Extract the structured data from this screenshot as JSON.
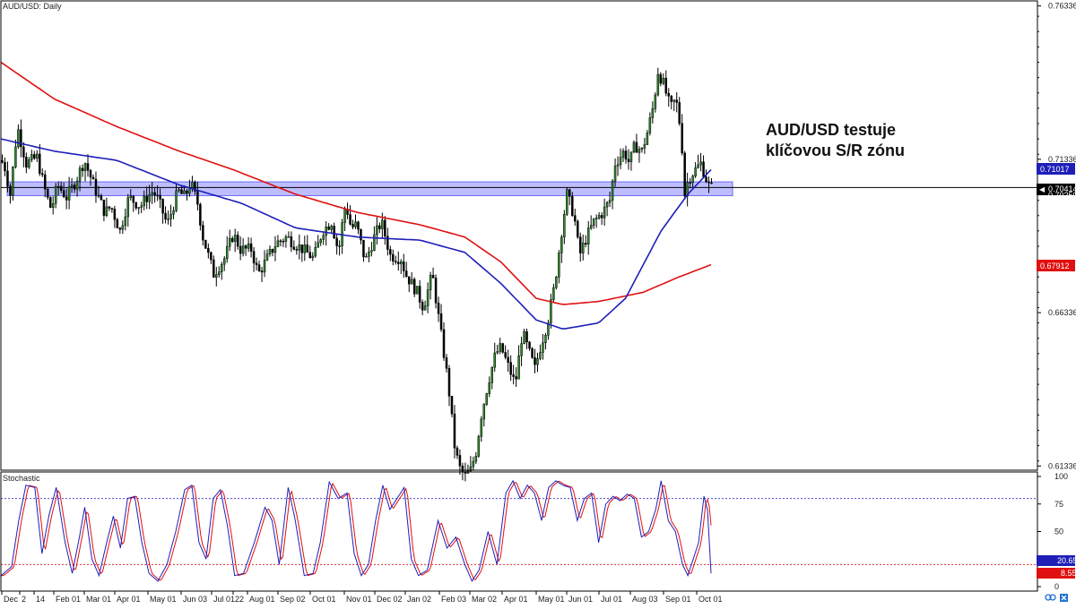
{
  "chart_data": [
    {
      "type": "candlestick",
      "title": "AUD/USD: Daily",
      "symbol": "AUD/USD",
      "timeframe": "Daily",
      "ylim": [
        0.612,
        0.765
      ],
      "y_ticks": [
        "0.76336",
        "0.71336",
        "0.66336",
        "0.61336"
      ],
      "y_tick_values": [
        0.76336,
        0.71336,
        0.66336,
        0.61336
      ],
      "x_ticks": [
        "Dec",
        "2",
        "14",
        "Feb 01",
        "Mar 01",
        "Apr 01",
        "May 01",
        "Jun 03",
        "Jul 01",
        "22",
        "Aug 01",
        "Sep 02",
        "Oct 01",
        "Nov 01",
        "Dec 02",
        "Jan 02",
        "Feb 03",
        "Mar 02",
        "Apr 01",
        "May 01",
        "Jun 01",
        "Jul 01",
        "Aug 03",
        "Sep 01",
        "Oct 01"
      ],
      "annotation": [
        "AUD/USD testuje",
        "klíčovou S/R zónu"
      ],
      "sr_zone": [
        0.7015,
        0.706
      ],
      "current_price": 0.70414,
      "current_price_label": "0.70414",
      "hidden_price_label": "0.70250",
      "ma_fast": {
        "color": "#1f1fb8",
        "last_value": 0.71017,
        "label": "0.71017"
      },
      "ma_slow": {
        "color": "#e01010",
        "last_value": 0.67912,
        "label": "0.67912"
      },
      "price_keypoints": [
        [
          0,
          0.713
        ],
        [
          5,
          0.712
        ],
        [
          12,
          0.702
        ],
        [
          20,
          0.724
        ],
        [
          30,
          0.712
        ],
        [
          42,
          0.714
        ],
        [
          52,
          0.702
        ],
        [
          58,
          0.697
        ],
        [
          65,
          0.705
        ],
        [
          75,
          0.701
        ],
        [
          85,
          0.706
        ],
        [
          95,
          0.713
        ],
        [
          108,
          0.703
        ],
        [
          118,
          0.696
        ],
        [
          125,
          0.698
        ],
        [
          135,
          0.69
        ],
        [
          145,
          0.701
        ],
        [
          158,
          0.698
        ],
        [
          165,
          0.701
        ],
        [
          172,
          0.703
        ],
        [
          178,
          0.7
        ],
        [
          188,
          0.692
        ],
        [
          200,
          0.703
        ],
        [
          208,
          0.701
        ],
        [
          214,
          0.706
        ],
        [
          222,
          0.699
        ],
        [
          228,
          0.688
        ],
        [
          240,
          0.676
        ],
        [
          252,
          0.681
        ],
        [
          262,
          0.689
        ],
        [
          270,
          0.684
        ],
        [
          282,
          0.684
        ],
        [
          290,
          0.676
        ],
        [
          300,
          0.681
        ],
        [
          310,
          0.686
        ],
        [
          322,
          0.688
        ],
        [
          330,
          0.686
        ],
        [
          340,
          0.684
        ],
        [
          352,
          0.681
        ],
        [
          362,
          0.69
        ],
        [
          372,
          0.693
        ],
        [
          380,
          0.683
        ],
        [
          384,
          0.692
        ],
        [
          388,
          0.699
        ],
        [
          394,
          0.691
        ],
        [
          400,
          0.692
        ],
        [
          410,
          0.68
        ],
        [
          420,
          0.688
        ],
        [
          428,
          0.693
        ],
        [
          438,
          0.682
        ],
        [
          450,
          0.681
        ],
        [
          455,
          0.676
        ],
        [
          468,
          0.67
        ],
        [
          475,
          0.665
        ],
        [
          485,
          0.676
        ],
        [
          493,
          0.66
        ],
        [
          503,
          0.64
        ],
        [
          510,
          0.62
        ],
        [
          515,
          0.613
        ],
        [
          522,
          0.61
        ],
        [
          528,
          0.612
        ],
        [
          534,
          0.618
        ],
        [
          540,
          0.63
        ],
        [
          548,
          0.641
        ],
        [
          556,
          0.65
        ],
        [
          562,
          0.652
        ],
        [
          570,
          0.646
        ],
        [
          578,
          0.64
        ],
        [
          586,
          0.657
        ],
        [
          594,
          0.65
        ],
        [
          600,
          0.645
        ],
        [
          606,
          0.652
        ],
        [
          614,
          0.66
        ],
        [
          622,
          0.672
        ],
        [
          630,
          0.69
        ],
        [
          636,
          0.702
        ],
        [
          644,
          0.695
        ],
        [
          650,
          0.682
        ],
        [
          658,
          0.688
        ],
        [
          666,
          0.693
        ],
        [
          676,
          0.696
        ],
        [
          684,
          0.7
        ],
        [
          690,
          0.712
        ],
        [
          700,
          0.716
        ],
        [
          706,
          0.712
        ],
        [
          712,
          0.718
        ],
        [
          720,
          0.716
        ],
        [
          726,
          0.722
        ],
        [
          733,
          0.731
        ],
        [
          738,
          0.742
        ],
        [
          744,
          0.738
        ],
        [
          752,
          0.73
        ],
        [
          758,
          0.733
        ],
        [
          764,
          0.722
        ],
        [
          768,
          0.702
        ],
        [
          772,
          0.707
        ],
        [
          780,
          0.71
        ],
        [
          786,
          0.712
        ],
        [
          792,
          0.707
        ],
        [
          796,
          0.704
        ]
      ],
      "ma_fast_keypoints": [
        [
          0,
          0.72
        ],
        [
          60,
          0.716
        ],
        [
          130,
          0.713
        ],
        [
          200,
          0.705
        ],
        [
          270,
          0.699
        ],
        [
          330,
          0.691
        ],
        [
          400,
          0.688
        ],
        [
          470,
          0.687
        ],
        [
          520,
          0.683
        ],
        [
          560,
          0.673
        ],
        [
          600,
          0.661
        ],
        [
          630,
          0.658
        ],
        [
          670,
          0.66
        ],
        [
          700,
          0.668
        ],
        [
          740,
          0.69
        ],
        [
          770,
          0.702
        ],
        [
          796,
          0.71
        ]
      ],
      "ma_slow_keypoints": [
        [
          0,
          0.745
        ],
        [
          60,
          0.733
        ],
        [
          130,
          0.724
        ],
        [
          200,
          0.716
        ],
        [
          260,
          0.71
        ],
        [
          330,
          0.702
        ],
        [
          400,
          0.696
        ],
        [
          470,
          0.692
        ],
        [
          520,
          0.688
        ],
        [
          560,
          0.68
        ],
        [
          600,
          0.668
        ],
        [
          630,
          0.666
        ],
        [
          670,
          0.667
        ],
        [
          720,
          0.67
        ],
        [
          760,
          0.675
        ],
        [
          796,
          0.679
        ]
      ],
      "seed": 7
    },
    {
      "type": "line",
      "title": "Stochastic",
      "ylim": [
        0,
        100
      ],
      "y_ticks": [
        "100",
        "75",
        "50",
        "25",
        "0"
      ],
      "y_tick_values": [
        100,
        75,
        50,
        25,
        0
      ],
      "levels": [
        80,
        20
      ],
      "k_color": "#1f1fb8",
      "d_color": "#e01010",
      "last_k": 20.65,
      "last_d": 8.55,
      "last_k_label": "20.65",
      "last_d_label": "8.55",
      "keypoints": [
        [
          0,
          10
        ],
        [
          12,
          18
        ],
        [
          20,
          60
        ],
        [
          28,
          92
        ],
        [
          38,
          90
        ],
        [
          46,
          30
        ],
        [
          54,
          65
        ],
        [
          62,
          90
        ],
        [
          72,
          40
        ],
        [
          80,
          12
        ],
        [
          88,
          45
        ],
        [
          94,
          72
        ],
        [
          102,
          25
        ],
        [
          110,
          10
        ],
        [
          118,
          38
        ],
        [
          126,
          64
        ],
        [
          134,
          35
        ],
        [
          142,
          80
        ],
        [
          150,
          82
        ],
        [
          158,
          40
        ],
        [
          166,
          12
        ],
        [
          176,
          5
        ],
        [
          186,
          20
        ],
        [
          196,
          50
        ],
        [
          206,
          88
        ],
        [
          214,
          92
        ],
        [
          222,
          40
        ],
        [
          230,
          25
        ],
        [
          238,
          80
        ],
        [
          246,
          88
        ],
        [
          254,
          55
        ],
        [
          262,
          10
        ],
        [
          272,
          12
        ],
        [
          284,
          40
        ],
        [
          296,
          72
        ],
        [
          304,
          60
        ],
        [
          312,
          20
        ],
        [
          322,
          90
        ],
        [
          330,
          60
        ],
        [
          340,
          10
        ],
        [
          350,
          12
        ],
        [
          358,
          40
        ],
        [
          368,
          95
        ],
        [
          378,
          80
        ],
        [
          388,
          85
        ],
        [
          396,
          30
        ],
        [
          404,
          10
        ],
        [
          412,
          20
        ],
        [
          420,
          60
        ],
        [
          428,
          92
        ],
        [
          436,
          70
        ],
        [
          444,
          80
        ],
        [
          452,
          90
        ],
        [
          460,
          25
        ],
        [
          468,
          10
        ],
        [
          478,
          15
        ],
        [
          490,
          60
        ],
        [
          500,
          35
        ],
        [
          510,
          45
        ],
        [
          520,
          20
        ],
        [
          528,
          5
        ],
        [
          536,
          15
        ],
        [
          546,
          50
        ],
        [
          556,
          20
        ],
        [
          566,
          85
        ],
        [
          574,
          96
        ],
        [
          582,
          80
        ],
        [
          590,
          92
        ],
        [
          598,
          85
        ],
        [
          606,
          60
        ],
        [
          614,
          90
        ],
        [
          622,
          96
        ],
        [
          630,
          92
        ],
        [
          638,
          90
        ],
        [
          646,
          60
        ],
        [
          654,
          80
        ],
        [
          662,
          85
        ],
        [
          670,
          40
        ],
        [
          678,
          75
        ],
        [
          686,
          82
        ],
        [
          694,
          78
        ],
        [
          702,
          84
        ],
        [
          710,
          80
        ],
        [
          718,
          45
        ],
        [
          726,
          50
        ],
        [
          734,
          70
        ],
        [
          740,
          96
        ],
        [
          748,
          60
        ],
        [
          756,
          50
        ],
        [
          764,
          20
        ],
        [
          770,
          10
        ],
        [
          776,
          25
        ],
        [
          782,
          40
        ],
        [
          788,
          82
        ],
        [
          792,
          70
        ],
        [
          796,
          12
        ]
      ]
    }
  ]
}
